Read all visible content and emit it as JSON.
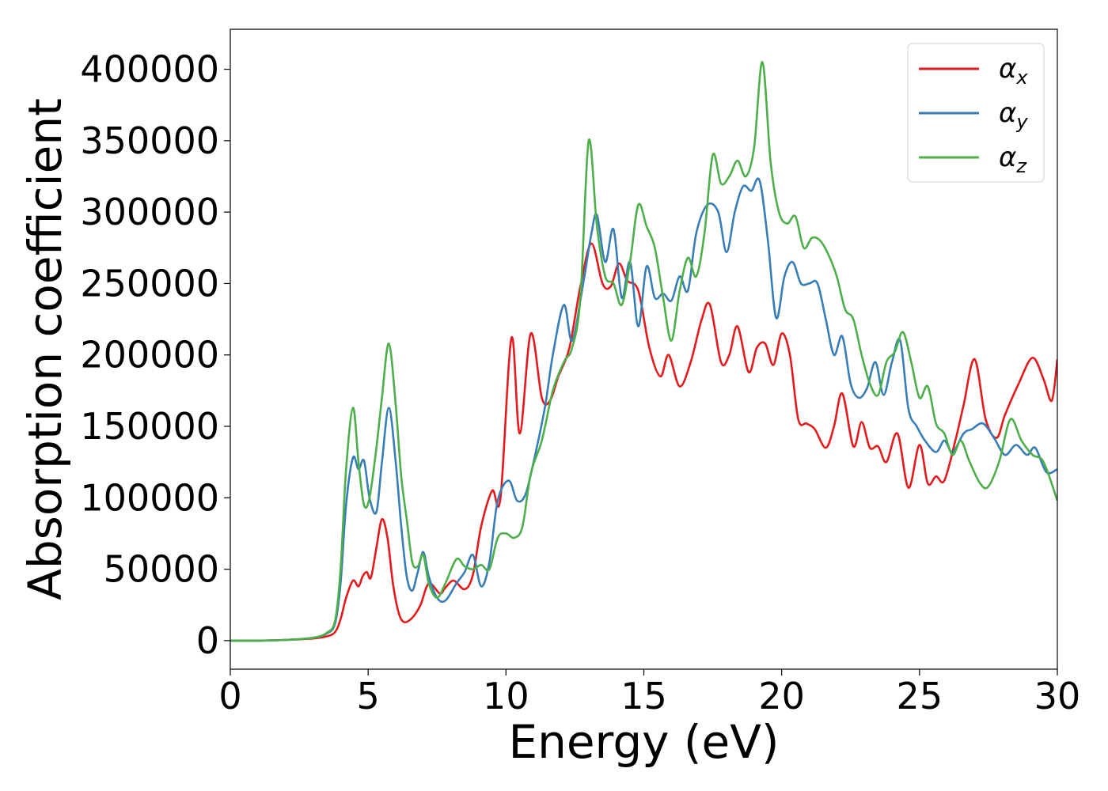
{
  "chart_data": {
    "type": "line",
    "title": "",
    "xlabel": "Energy (eV)",
    "ylabel": "Absorption coefficient",
    "xlim": [
      0,
      30
    ],
    "ylim": [
      -20000,
      428000
    ],
    "xticks": [
      0,
      5,
      10,
      15,
      20,
      25,
      30
    ],
    "yticks": [
      0,
      50000,
      100000,
      150000,
      200000,
      250000,
      300000,
      350000,
      400000
    ],
    "grid": false,
    "legend_position": "top-right",
    "series": [
      {
        "name": "αx",
        "name_base": "α",
        "name_sub": "x",
        "color": "#e41a1c",
        "x": [
          0,
          1,
          2,
          3,
          3.5,
          3.8,
          4.0,
          4.2,
          4.45,
          4.65,
          4.8,
          4.95,
          5.1,
          5.3,
          5.5,
          5.7,
          5.9,
          6.1,
          6.3,
          6.6,
          6.9,
          7.2,
          7.6,
          7.8,
          8.1,
          8.5,
          8.8,
          9.1,
          9.5,
          9.8,
          10.2,
          10.5,
          10.9,
          11.3,
          11.6,
          11.9,
          12.3,
          12.7,
          13.1,
          13.5,
          13.8,
          14.1,
          14.4,
          14.8,
          15.2,
          15.6,
          15.9,
          16.3,
          16.7,
          17.1,
          17.4,
          17.8,
          18.1,
          18.4,
          18.8,
          19.1,
          19.4,
          19.7,
          20.0,
          20.3,
          20.6,
          20.9,
          21.2,
          21.6,
          21.9,
          22.2,
          22.6,
          22.9,
          23.2,
          23.5,
          23.8,
          24.2,
          24.6,
          25.0,
          25.3,
          25.6,
          25.9,
          26.3,
          26.6,
          27.0,
          27.4,
          27.8,
          28.1,
          28.6,
          29.1,
          29.5,
          29.8,
          30.0
        ],
        "y": [
          0,
          0,
          500,
          1500,
          3000,
          6000,
          15000,
          30000,
          42000,
          38000,
          45000,
          48000,
          44000,
          65000,
          85000,
          72000,
          40000,
          20000,
          13000,
          16000,
          25000,
          40000,
          33000,
          37000,
          42000,
          36000,
          46000,
          80000,
          105000,
          100000,
          212000,
          145000,
          215000,
          170000,
          168000,
          185000,
          205000,
          248000,
          278000,
          250000,
          248000,
          264000,
          252000,
          245000,
          205000,
          185000,
          200000,
          178000,
          195000,
          225000,
          235000,
          195000,
          200000,
          220000,
          188000,
          205000,
          208000,
          193000,
          215000,
          200000,
          155000,
          152000,
          148000,
          135000,
          150000,
          173000,
          136000,
          153000,
          135000,
          136000,
          125000,
          145000,
          107000,
          137000,
          110000,
          115000,
          112000,
          140000,
          165000,
          197000,
          155000,
          142000,
          158000,
          180000,
          198000,
          183000,
          168000,
          197000
        ]
      },
      {
        "name": "αy",
        "name_base": "α",
        "name_sub": "y",
        "color": "#377eb8",
        "x": [
          0,
          1,
          2,
          3,
          3.5,
          3.8,
          4.0,
          4.2,
          4.45,
          4.65,
          4.85,
          5.05,
          5.3,
          5.5,
          5.75,
          6.0,
          6.2,
          6.4,
          6.6,
          6.8,
          7.0,
          7.2,
          7.5,
          7.8,
          8.2,
          8.5,
          8.8,
          9.1,
          9.4,
          9.7,
          10.1,
          10.4,
          10.7,
          11.0,
          11.4,
          11.7,
          12.1,
          12.4,
          12.8,
          13.1,
          13.3,
          13.6,
          13.9,
          14.2,
          14.5,
          14.8,
          15.1,
          15.4,
          15.7,
          16.0,
          16.3,
          16.6,
          16.9,
          17.3,
          17.7,
          18.0,
          18.3,
          18.6,
          18.9,
          19.2,
          19.5,
          19.8,
          20.1,
          20.4,
          20.7,
          21.0,
          21.3,
          21.6,
          21.9,
          22.2,
          22.5,
          22.8,
          23.1,
          23.4,
          23.7,
          24.0,
          24.3,
          24.6,
          24.9,
          25.2,
          25.6,
          25.9,
          26.2,
          26.6,
          26.9,
          27.3,
          27.7,
          28.1,
          28.5,
          28.9,
          29.2,
          29.6,
          30.0
        ],
        "y": [
          0,
          0,
          500,
          2000,
          5000,
          12000,
          40000,
          95000,
          128000,
          120000,
          126000,
          100000,
          90000,
          125000,
          163000,
          125000,
          80000,
          45000,
          35000,
          48000,
          62000,
          45000,
          30000,
          28000,
          40000,
          48000,
          60000,
          38000,
          55000,
          98000,
          112000,
          98000,
          102000,
          125000,
          162000,
          200000,
          235000,
          210000,
          250000,
          285000,
          298000,
          265000,
          288000,
          240000,
          265000,
          220000,
          262000,
          240000,
          243000,
          238000,
          255000,
          245000,
          285000,
          305000,
          300000,
          272000,
          300000,
          318000,
          315000,
          322000,
          280000,
          226000,
          255000,
          265000,
          250000,
          250000,
          250000,
          225000,
          200000,
          213000,
          180000,
          170000,
          177000,
          195000,
          172000,
          195000,
          210000,
          162000,
          150000,
          140000,
          132000,
          140000,
          132000,
          145000,
          148000,
          152000,
          142000,
          130000,
          137000,
          130000,
          135000,
          118000,
          120000
        ]
      },
      {
        "name": "αz",
        "name_base": "α",
        "name_sub": "z",
        "color": "#4daf4a",
        "x": [
          0,
          1,
          2,
          3,
          3.5,
          3.8,
          4.0,
          4.2,
          4.45,
          4.65,
          4.85,
          5.05,
          5.3,
          5.5,
          5.75,
          6.0,
          6.2,
          6.4,
          6.6,
          6.8,
          7.0,
          7.2,
          7.5,
          7.8,
          8.2,
          8.5,
          8.8,
          9.1,
          9.4,
          9.7,
          10.0,
          10.3,
          10.6,
          10.9,
          11.3,
          11.7,
          12.1,
          12.4,
          12.7,
          13.0,
          13.3,
          13.6,
          13.9,
          14.2,
          14.5,
          14.8,
          15.1,
          15.4,
          15.7,
          16.0,
          16.3,
          16.6,
          16.9,
          17.2,
          17.5,
          17.8,
          18.1,
          18.4,
          18.7,
          19.0,
          19.3,
          19.6,
          19.9,
          20.2,
          20.5,
          20.8,
          21.1,
          21.4,
          21.7,
          22.0,
          22.3,
          22.6,
          22.9,
          23.2,
          23.5,
          23.8,
          24.1,
          24.4,
          24.7,
          25.0,
          25.3,
          25.6,
          25.9,
          26.2,
          26.5,
          26.8,
          27.2,
          27.5,
          27.9,
          28.3,
          28.7,
          29.1,
          29.5,
          30.0
        ],
        "y": [
          0,
          0,
          500,
          2000,
          5500,
          14000,
          50000,
          120000,
          163000,
          125000,
          95000,
          100000,
          135000,
          170000,
          208000,
          165000,
          115000,
          85000,
          55000,
          52000,
          60000,
          40000,
          30000,
          40000,
          57000,
          52000,
          50000,
          53000,
          50000,
          72000,
          75000,
          72000,
          80000,
          117000,
          140000,
          175000,
          195000,
          205000,
          240000,
          350000,
          290000,
          255000,
          250000,
          235000,
          265000,
          305000,
          290000,
          275000,
          240000,
          210000,
          245000,
          268000,
          255000,
          285000,
          340000,
          320000,
          325000,
          336000,
          325000,
          345000,
          405000,
          335000,
          300000,
          292000,
          297000,
          275000,
          282000,
          280000,
          270000,
          255000,
          232000,
          225000,
          200000,
          180000,
          172000,
          195000,
          202000,
          216000,
          195000,
          170000,
          178000,
          152000,
          145000,
          130000,
          140000,
          126000,
          110000,
          108000,
          126000,
          155000,
          140000,
          130000,
          125000,
          98000
        ]
      }
    ]
  }
}
